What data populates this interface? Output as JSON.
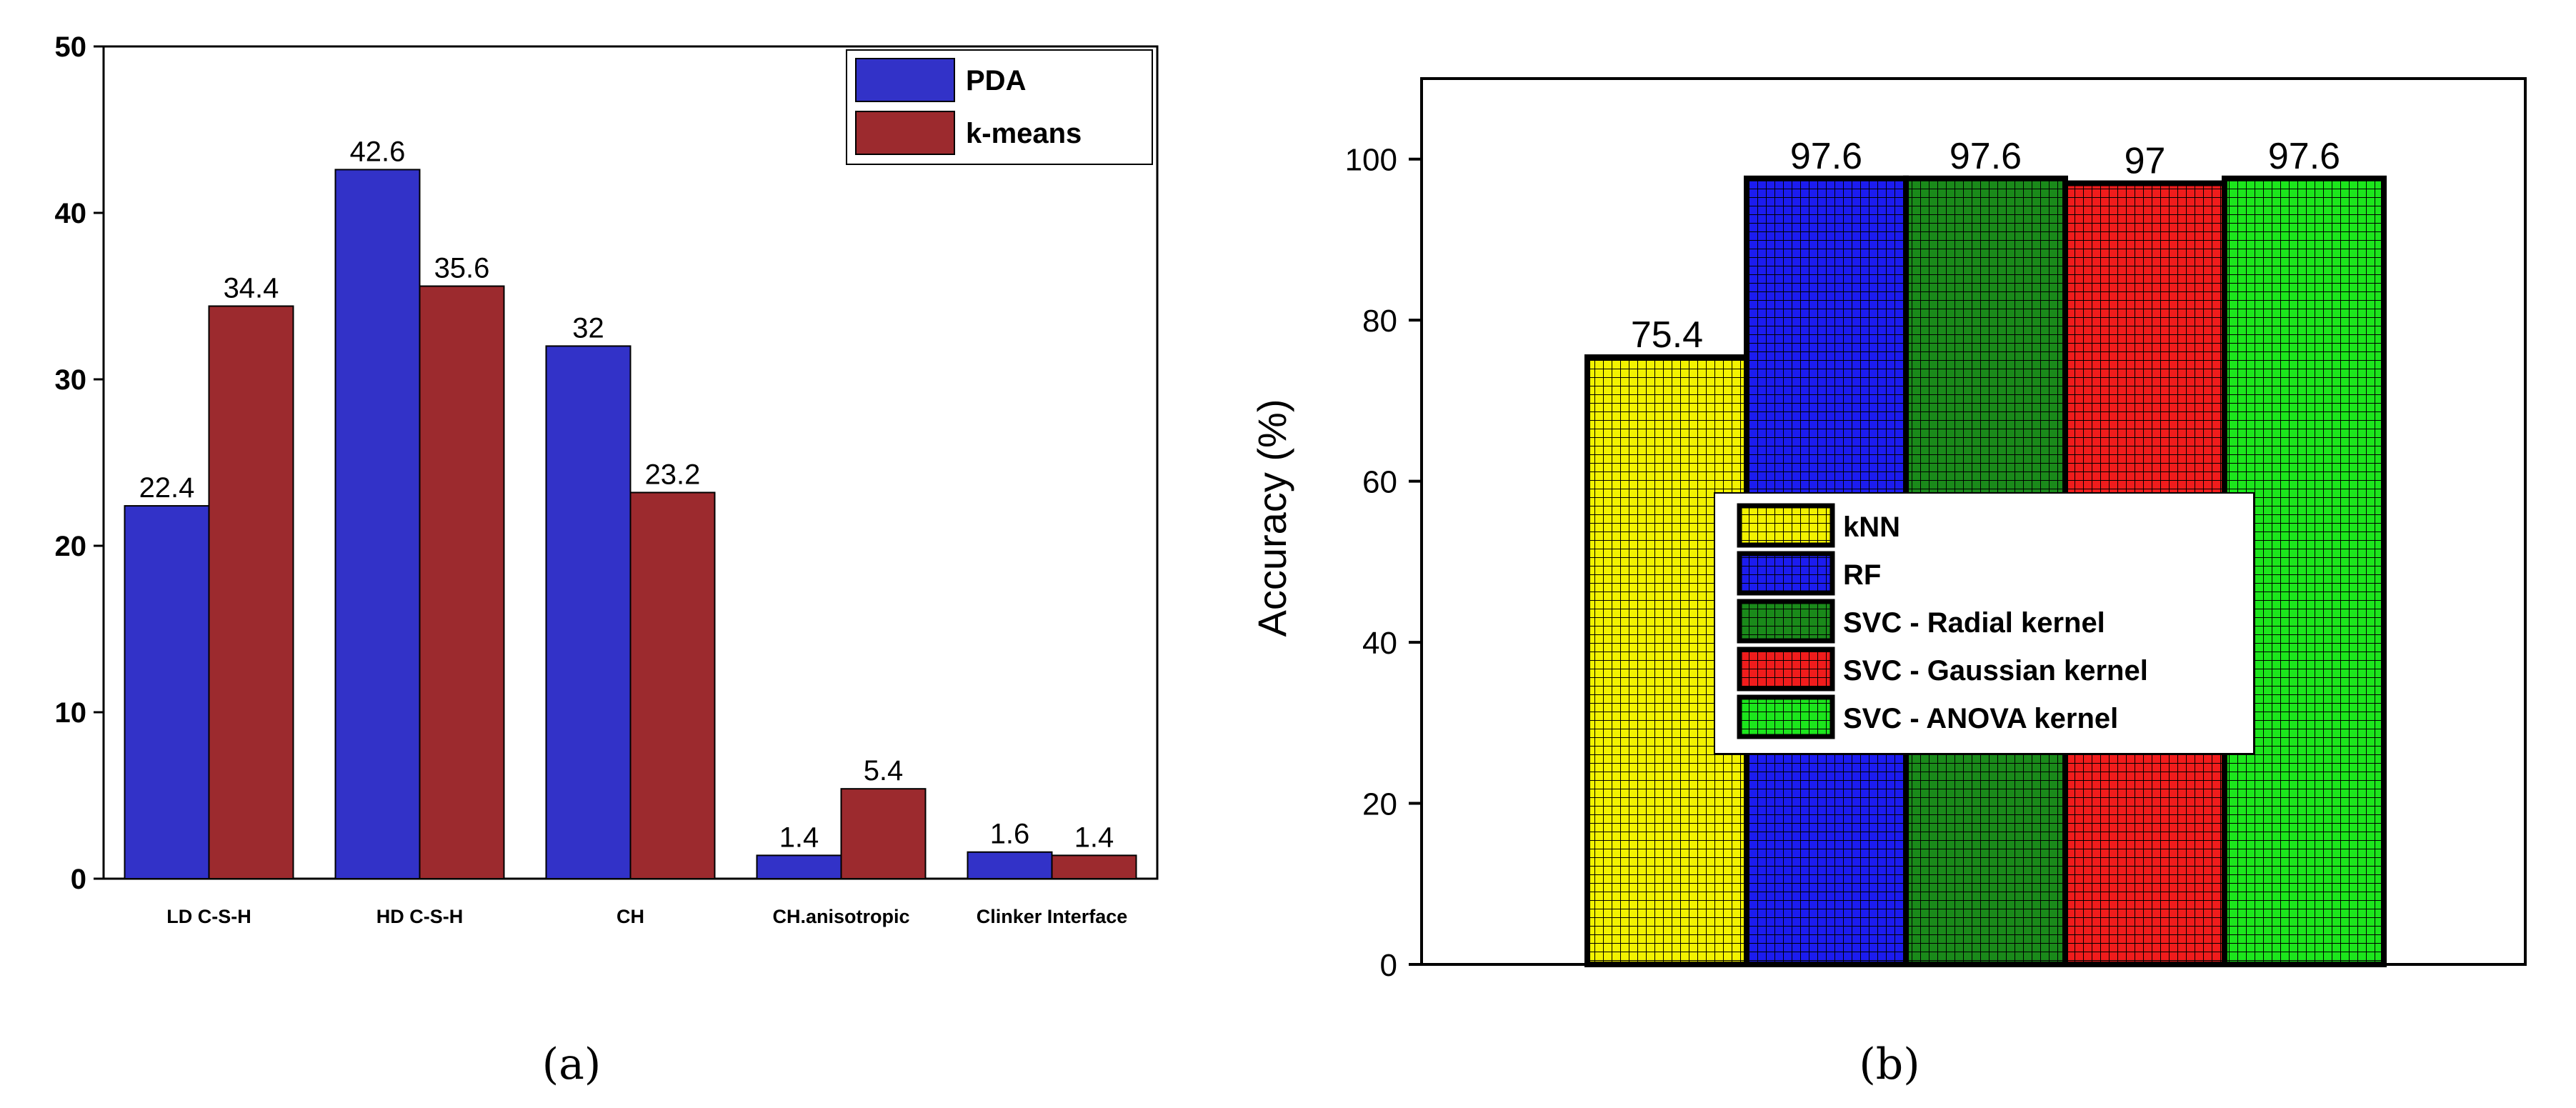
{
  "chart_data": [
    {
      "type": "bar",
      "panel_label": "(a)",
      "categories": [
        "LD C-S-H",
        "HD C-S-H",
        "CH",
        "CH.anisotropic",
        "Clinker Interface"
      ],
      "series": [
        {
          "name": "PDA",
          "color": "#3232c8",
          "values": [
            22.4,
            42.6,
            32,
            1.4,
            1.6
          ]
        },
        {
          "name": "k-means",
          "color": "#9c2a2e",
          "values": [
            34.4,
            35.6,
            23.2,
            5.4,
            1.4
          ]
        }
      ],
      "yticks": [
        0,
        10,
        20,
        30,
        40,
        50
      ],
      "ylim": [
        0,
        50
      ],
      "xlabel": "",
      "ylabel": "",
      "legend": "top-right"
    },
    {
      "type": "bar",
      "panel_label": "(b)",
      "categories": [
        "kNN",
        "RF",
        "SVC - Radial kernel",
        "SVC - Gaussian kernel",
        "SVC - ANOVA kernel"
      ],
      "values": [
        75.4,
        97.6,
        97.6,
        97,
        97.6
      ],
      "value_labels": [
        "75.4",
        "97.6",
        "97.6",
        "97",
        "97.6"
      ],
      "colors": [
        "#f2f200",
        "#1c1cf0",
        "#1a8a1a",
        "#f01c1c",
        "#1ce61c"
      ],
      "pattern": "crosshatch",
      "yticks": [
        0,
        20,
        40,
        60,
        80,
        100
      ],
      "ylim": [
        0,
        110
      ],
      "xlabel": "",
      "ylabel": "Accuracy (%)",
      "legend": "center"
    }
  ]
}
